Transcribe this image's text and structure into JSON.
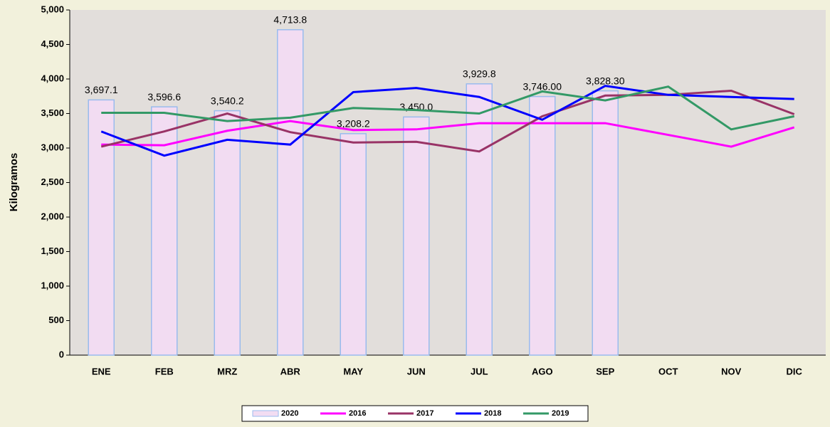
{
  "chart_data": {
    "type": "combo",
    "y_label": "Kilogramos",
    "categories": [
      "ENE",
      "FEB",
      "MRZ",
      "ABR",
      "MAY",
      "JUN",
      "JUL",
      "AGO",
      "SEP",
      "OCT",
      "NOV",
      "DIC"
    ],
    "series": [
      {
        "name": "2020",
        "type": "bar",
        "color": "#f2dcf2",
        "edge": "#99bbee",
        "values": [
          3697.1,
          3596.6,
          3540.2,
          4713.8,
          3208.2,
          3450.0,
          3929.8,
          3746.0,
          3828.3,
          null,
          null,
          null
        ],
        "value_labels": [
          "3,697.1",
          "3,596.6",
          "3,540.2",
          "4,713.8",
          "3,208.2",
          "3,450.0",
          "3,929.8",
          "3,746.00",
          "3,828.30",
          null,
          null,
          null
        ]
      },
      {
        "name": "2016",
        "type": "line",
        "color": "#ff00ff",
        "values": [
          3050,
          3040,
          3250,
          3390,
          3260,
          3270,
          3360,
          3360,
          3360,
          3190,
          3020,
          3300
        ]
      },
      {
        "name": "2017",
        "type": "line",
        "color": "#993366",
        "values": [
          3020,
          3240,
          3500,
          3230,
          3080,
          3090,
          2950,
          3460,
          3760,
          3770,
          3830,
          3490
        ]
      },
      {
        "name": "2018",
        "type": "line",
        "color": "#0000ff",
        "values": [
          3240,
          2890,
          3120,
          3050,
          3810,
          3870,
          3740,
          3410,
          3900,
          3770,
          3740,
          3710
        ]
      },
      {
        "name": "2019",
        "type": "line",
        "color": "#339966",
        "values": [
          3510,
          3510,
          3390,
          3440,
          3580,
          3550,
          3500,
          3820,
          3690,
          3890,
          3270,
          3460
        ]
      }
    ],
    "ylim": [
      0,
      5000
    ],
    "yticks": [
      0,
      500,
      {
        "value": 1000,
        "label": "1,000"
      },
      {
        "value": 1500,
        "label": "1,500"
      },
      {
        "value": 2000,
        "label": "2,000"
      },
      {
        "value": 2500,
        "label": "2,500"
      },
      {
        "value": 3000,
        "label": "3,000"
      },
      {
        "value": 3500,
        "label": "3,500"
      },
      {
        "value": 4000,
        "label": "4,000"
      },
      {
        "value": 4500,
        "label": "4,500"
      },
      {
        "value": 5000,
        "label": "5,000"
      }
    ],
    "grid": false,
    "legend": "bottom"
  }
}
